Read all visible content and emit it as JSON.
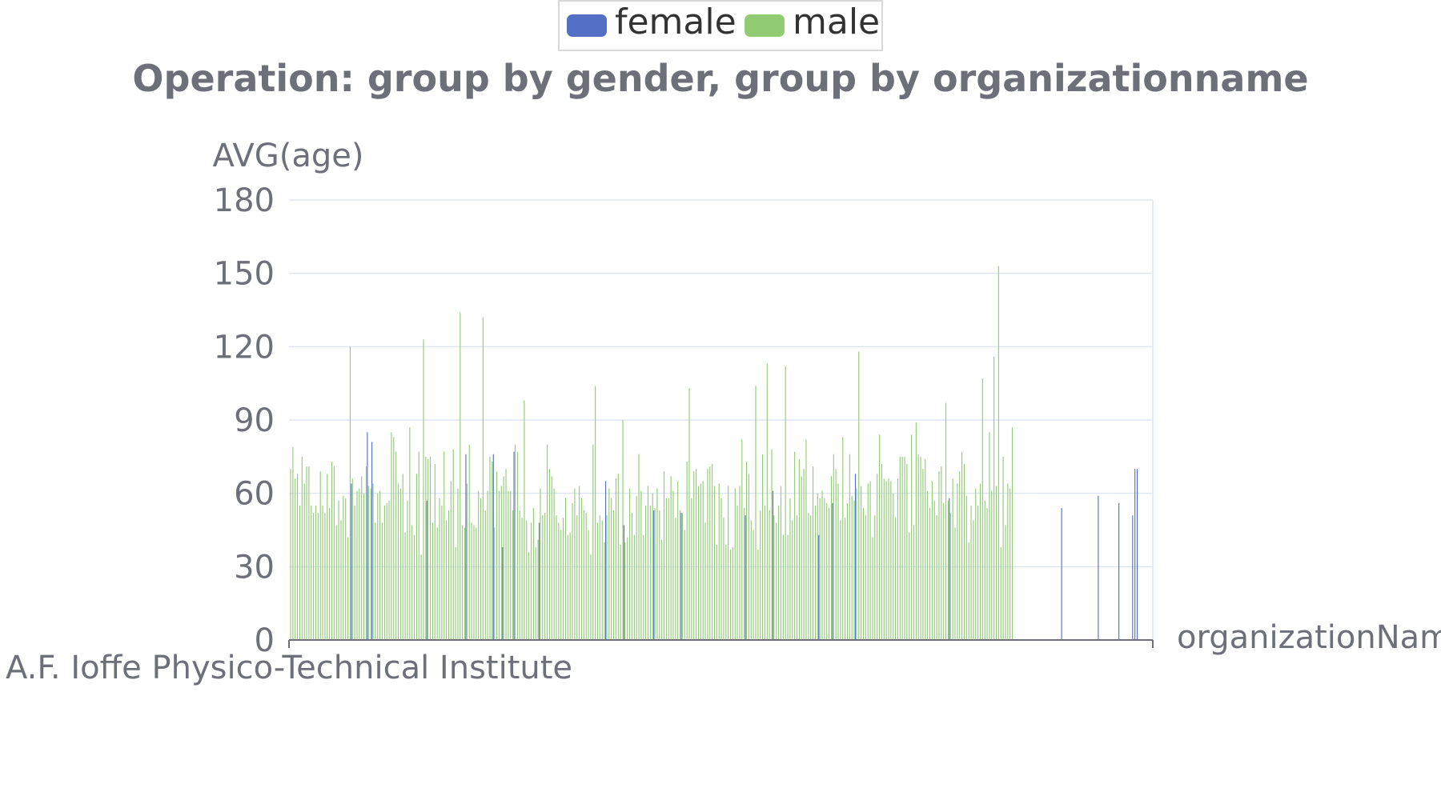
{
  "chart_data": {
    "type": "bar",
    "title": "Operation: group by gender, group by organizationname",
    "xlabel": "organizationName",
    "ylabel": "AVG(age)",
    "ylim": [
      0,
      180
    ],
    "y_ticks": [
      "0",
      "30",
      "60",
      "90",
      "120",
      "150",
      "180"
    ],
    "visible_x_tick_labels": [
      "A.F. Ioffe Physico-Technical Institute"
    ],
    "legend_position": "top-center",
    "grid": true,
    "series": [
      {
        "name": "female",
        "color": "#5470c6",
        "values": [
          0,
          0,
          0,
          0,
          0,
          0,
          0,
          0,
          0,
          0,
          0,
          0,
          0,
          0,
          0,
          0,
          0,
          0,
          0,
          0,
          0,
          0,
          0,
          0,
          0,
          0,
          0,
          64,
          0,
          0,
          0,
          0,
          0,
          0,
          85,
          0,
          81,
          0,
          0,
          0,
          0,
          0,
          0,
          0,
          0,
          0,
          0,
          0,
          0,
          0,
          0,
          0,
          0,
          0,
          0,
          0,
          0,
          0,
          0,
          0,
          57,
          0,
          0,
          0,
          0,
          0,
          0,
          0,
          0,
          0,
          0,
          0,
          0,
          0,
          0,
          0,
          0,
          76,
          0,
          0,
          0,
          0,
          0,
          0,
          0,
          0,
          0,
          0,
          0,
          76,
          0,
          0,
          0,
          38,
          0,
          0,
          0,
          0,
          77,
          0,
          0,
          0,
          0,
          0,
          0,
          0,
          0,
          0,
          0,
          48,
          0,
          0,
          0,
          0,
          0,
          0,
          0,
          0,
          0,
          0,
          0,
          0,
          0,
          0,
          0,
          0,
          0,
          0,
          0,
          0,
          0,
          0,
          0,
          0,
          0,
          0,
          0,
          0,
          65,
          0,
          0,
          0,
          0,
          0,
          0,
          0,
          47,
          0,
          0,
          0,
          0,
          0,
          0,
          0,
          0,
          0,
          0,
          0,
          0,
          53,
          0,
          0,
          0,
          0,
          0,
          0,
          0,
          0,
          0,
          0,
          0,
          52,
          0,
          0,
          0,
          0,
          0,
          0,
          0,
          0,
          0,
          0,
          0,
          0,
          0,
          0,
          0,
          0,
          0,
          0,
          0,
          0,
          0,
          0,
          0,
          0,
          0,
          0,
          0,
          51,
          0,
          0,
          0,
          0,
          0,
          0,
          0,
          0,
          0,
          0,
          0,
          61,
          0,
          0,
          0,
          0,
          0,
          0,
          0,
          0,
          0,
          0,
          0,
          0,
          0,
          0,
          0,
          0,
          0,
          0,
          0,
          43,
          0,
          0,
          0,
          0,
          0,
          56,
          0,
          0,
          0,
          0,
          0,
          0,
          0,
          0,
          0,
          68,
          0,
          0,
          0,
          0,
          0,
          0,
          0,
          0,
          0,
          0,
          0,
          0,
          0,
          0,
          0,
          0,
          0,
          0,
          0,
          0,
          0,
          0,
          0,
          0,
          0,
          0,
          0,
          0,
          0,
          0,
          0,
          0,
          0,
          0,
          0,
          0,
          0,
          0,
          0,
          0,
          58,
          0,
          0,
          0,
          0,
          0,
          0,
          0,
          0,
          0,
          0,
          0,
          0,
          0,
          0,
          0,
          0,
          0,
          0,
          0,
          0,
          0,
          0,
          0,
          0,
          0,
          0,
          0,
          0,
          0,
          0,
          0,
          0,
          0,
          0,
          0,
          0,
          0,
          0,
          0,
          0,
          0,
          0,
          0,
          0,
          0,
          0,
          0,
          0,
          54,
          0,
          0,
          0,
          0,
          0,
          0,
          0,
          0,
          0,
          0,
          0,
          0,
          0,
          0,
          0,
          59,
          0,
          0,
          0,
          0,
          0,
          0,
          0,
          0,
          56,
          0,
          0,
          0,
          0,
          0,
          51,
          70,
          70,
          0,
          0,
          0,
          0,
          0,
          0
        ]
      },
      {
        "name": "male",
        "color": "#91cc75",
        "values": [
          70,
          79,
          66,
          68,
          55,
          75,
          64,
          71,
          71,
          55,
          52,
          55,
          52,
          69,
          55,
          52,
          68,
          54,
          73,
          71,
          47,
          57,
          49,
          59,
          58,
          42,
          120,
          66,
          55,
          61,
          62,
          67,
          60,
          71,
          63,
          62,
          64,
          48,
          60,
          61,
          48,
          55,
          56,
          57,
          85,
          83,
          77,
          64,
          62,
          68,
          44,
          57,
          87,
          47,
          43,
          68,
          77,
          35,
          123,
          75,
          74,
          75,
          48,
          72,
          46,
          58,
          55,
          77,
          49,
          53,
          65,
          78,
          38,
          62,
          134,
          47,
          46,
          64,
          80,
          48,
          47,
          46,
          61,
          58,
          132,
          53,
          61,
          75,
          73,
          46,
          69,
          61,
          63,
          67,
          70,
          61,
          61,
          53,
          80,
          77,
          53,
          50,
          98,
          49,
          36,
          48,
          54,
          38,
          41,
          62,
          51,
          52,
          80,
          70,
          67,
          62,
          51,
          48,
          45,
          50,
          58,
          43,
          44,
          56,
          62,
          51,
          63,
          58,
          53,
          52,
          45,
          35,
          80,
          104,
          48,
          51,
          49,
          40,
          51,
          62,
          58,
          53,
          66,
          68,
          39,
          90,
          40,
          42,
          62,
          52,
          43,
          59,
          76,
          61,
          43,
          55,
          63,
          55,
          60,
          54,
          62,
          53,
          41,
          69,
          58,
          58,
          67,
          61,
          50,
          65,
          53,
          52,
          45,
          73,
          103,
          58,
          69,
          70,
          63,
          64,
          65,
          48,
          70,
          71,
          72,
          63,
          39,
          64,
          58,
          50,
          39,
          63,
          37,
          38,
          62,
          55,
          63,
          82,
          54,
          73,
          68,
          49,
          45,
          104,
          37,
          53,
          76,
          55,
          113,
          53,
          78,
          51,
          48,
          55,
          63,
          43,
          112,
          43,
          58,
          49,
          77,
          51,
          74,
          67,
          70,
          82,
          52,
          51,
          71,
          55,
          60,
          58,
          61,
          58,
          56,
          54,
          67,
          76,
          70,
          64,
          49,
          83,
          50,
          56,
          76,
          59,
          57,
          62,
          118,
          63,
          54,
          51,
          64,
          65,
          42,
          51,
          68,
          84,
          72,
          66,
          65,
          66,
          65,
          60,
          50,
          66,
          75,
          75,
          75,
          72,
          44,
          84,
          47,
          89,
          76,
          75,
          70,
          74,
          61,
          54,
          65,
          57,
          51,
          69,
          71,
          56,
          97,
          57,
          52,
          66,
          46,
          64,
          69,
          77,
          72,
          59,
          40,
          55,
          49,
          62,
          55,
          64,
          107,
          57,
          54,
          85,
          61,
          116,
          63,
          153,
          38,
          75,
          47,
          64,
          62,
          87
        ]
      }
    ]
  }
}
